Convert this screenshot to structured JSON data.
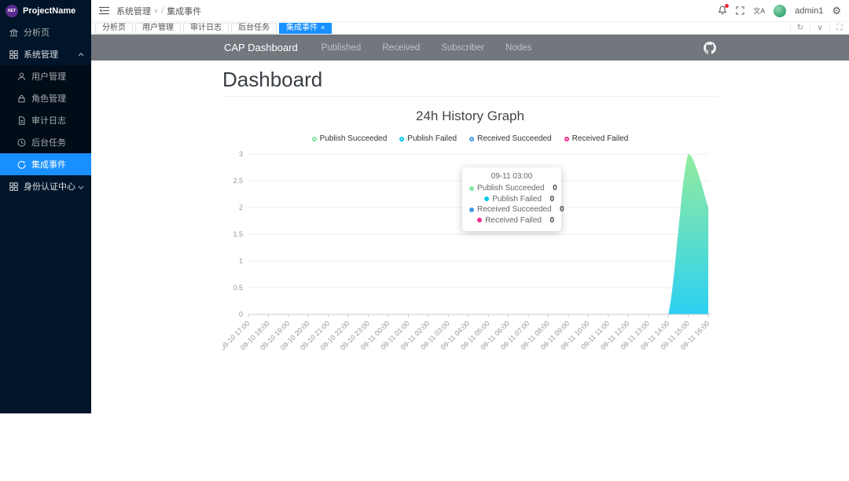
{
  "app": {
    "accent_color": "#1890ff",
    "sidebar_color": "#001529",
    "navbar_color": "#71777d"
  },
  "sidebar": {
    "logo_badge": "NET",
    "title": "ProjectName",
    "menu": [
      {
        "label": "分析页",
        "icon": "bank-icon",
        "type": "item"
      },
      {
        "label": "系统管理",
        "icon": "appstore-icon",
        "type": "section",
        "state": "expanded"
      },
      {
        "label": "用户管理",
        "icon": "user-icon",
        "type": "sub"
      },
      {
        "label": "角色管理",
        "icon": "lock-icon",
        "type": "sub"
      },
      {
        "label": "审计日志",
        "icon": "file-icon",
        "type": "sub"
      },
      {
        "label": "后台任务",
        "icon": "clock-icon",
        "type": "sub"
      },
      {
        "label": "集成事件",
        "icon": "sync-icon",
        "type": "sub",
        "active": true
      },
      {
        "label": "身份认证中心",
        "icon": "appstore-icon",
        "type": "section",
        "state": "collapsed"
      }
    ]
  },
  "topbar": {
    "breadcrumb": {
      "parent": "系统管理",
      "separator": "/",
      "current": "集成事件"
    },
    "icons": [
      "bell-icon",
      "fullscreen-icon",
      "translate-icon",
      "settings-gear-icon"
    ],
    "user": "admin1",
    "gear_glyph": "⚙",
    "translate_glyph": "文A"
  },
  "tabbar": {
    "close_glyph": "×",
    "items": [
      {
        "label": "分析页"
      },
      {
        "label": "用户管理"
      },
      {
        "label": "审计日志"
      },
      {
        "label": "后台任务"
      },
      {
        "label": "集成事件",
        "active": true,
        "closable": true
      }
    ],
    "controls": [
      {
        "icon": "refresh-icon",
        "glyph": "↻"
      },
      {
        "icon": "chevron-down-icon",
        "glyph": "∨"
      },
      {
        "icon": "expand-icon",
        "glyph": "⛶"
      }
    ]
  },
  "cap_navbar": {
    "brand": "CAP Dashboard",
    "links": [
      "Published",
      "Received",
      "Subscriber",
      "Nodes"
    ],
    "github_icon": "github-icon"
  },
  "page": {
    "title": "Dashboard"
  },
  "chart_data": {
    "type": "area",
    "title": "24h History Graph",
    "x": [
      "09-10 17:00",
      "09-10 18:00",
      "09-10 19:00",
      "09-10 20:00",
      "09-10 21:00",
      "09-10 22:00",
      "09-10 23:00",
      "09-11 00:00",
      "09-11 01:00",
      "09-11 02:00",
      "09-11 03:00",
      "09-11 04:00",
      "09-11 05:00",
      "09-11 06:00",
      "09-11 07:00",
      "09-11 08:00",
      "09-11 09:00",
      "09-11 10:00",
      "09-11 11:00",
      "09-11 12:00",
      "09-11 13:00",
      "09-11 14:00",
      "09-11 15:00",
      "09-11 16:00"
    ],
    "yticks": [
      0,
      0.5,
      1,
      1.5,
      2,
      2.5,
      3
    ],
    "ylim": [
      0,
      3
    ],
    "grid": true,
    "legend_position": "top",
    "series": [
      {
        "name": "Publish Succeeded",
        "color": "#82e6a4",
        "values": [
          0,
          0,
          0,
          0,
          0,
          0,
          0,
          0,
          0,
          0,
          0,
          0,
          0,
          0,
          0,
          0,
          0,
          0,
          0,
          0,
          0,
          0,
          3,
          2
        ]
      },
      {
        "name": "Publish Failed",
        "color": "#00c9f2",
        "values": [
          0,
          0,
          0,
          0,
          0,
          0,
          0,
          0,
          0,
          0,
          0,
          0,
          0,
          0,
          0,
          0,
          0,
          0,
          0,
          0,
          0,
          0,
          0,
          0
        ]
      },
      {
        "name": "Received Succeeded",
        "color": "#3f9bea",
        "values": [
          0,
          0,
          0,
          0,
          0,
          0,
          0,
          0,
          0,
          0,
          0,
          0,
          0,
          0,
          0,
          0,
          0,
          0,
          0,
          0,
          0,
          0,
          0,
          0
        ]
      },
      {
        "name": "Received Failed",
        "color": "#ee2d90",
        "values": [
          0,
          0,
          0,
          0,
          0,
          0,
          0,
          0,
          0,
          0,
          0,
          0,
          0,
          0,
          0,
          0,
          0,
          0,
          0,
          0,
          0,
          0,
          0,
          0
        ]
      }
    ],
    "area_gradient": {
      "top": "#93ec9e",
      "bottom": "#2dd0f2"
    },
    "tooltip": {
      "time": "09-11 03:00",
      "rows": [
        {
          "label": "Publish Succeeded",
          "value": "0",
          "color": "#82e6a4"
        },
        {
          "label": "Publish Failed",
          "value": "0",
          "color": "#00c9f2"
        },
        {
          "label": "Received Succeeded",
          "value": "0",
          "color": "#3f9bea"
        },
        {
          "label": "Received Failed",
          "value": "0",
          "color": "#ee2d90"
        }
      ]
    }
  }
}
